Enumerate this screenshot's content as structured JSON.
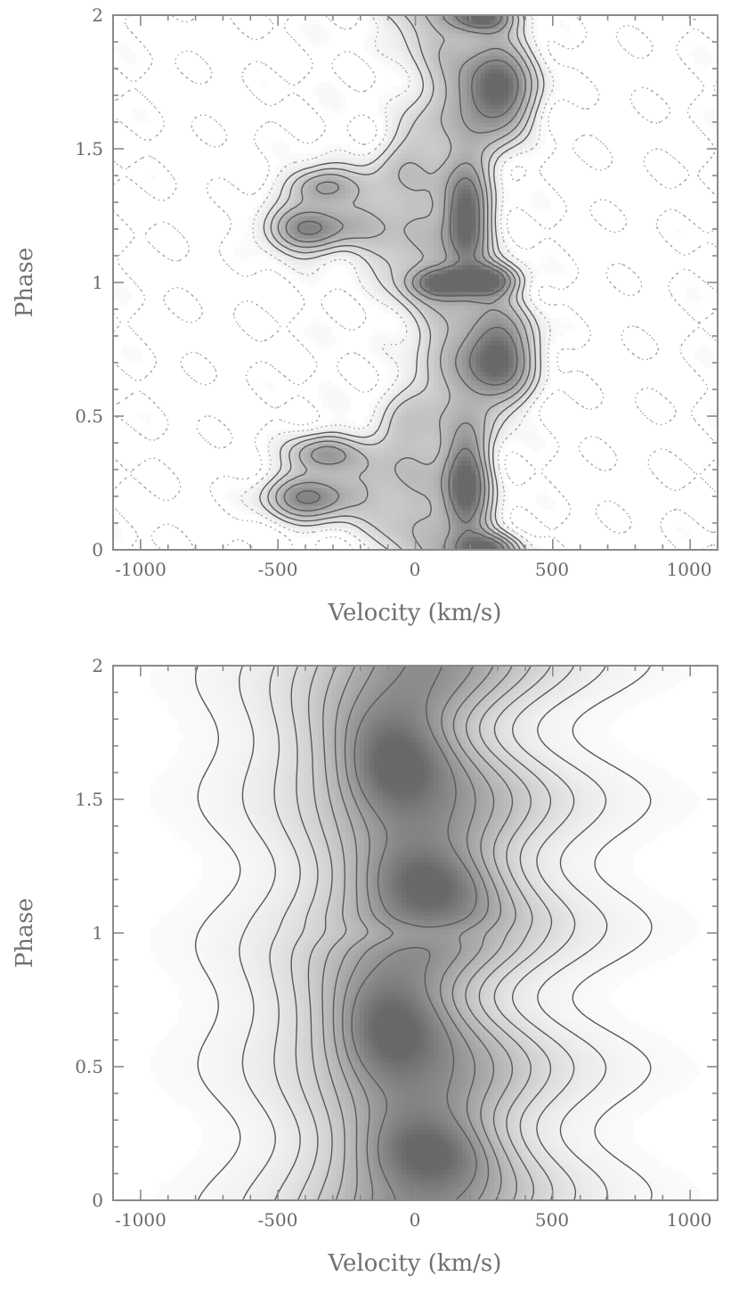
{
  "chart_data": [
    {
      "type": "heatmap",
      "panel": "top",
      "xlabel": "Velocity (km/s)",
      "ylabel": "Phase",
      "xlim": [
        -1100,
        1100
      ],
      "ylim": [
        0,
        2
      ],
      "xticks": [
        -1000,
        -500,
        0,
        500,
        1000
      ],
      "yticks": [
        0,
        0.5,
        1,
        1.5,
        2
      ],
      "xtick_labels": [
        "-1000",
        "-500",
        "0",
        "500",
        "1000"
      ],
      "ytick_labels": [
        "0",
        "0.5",
        "1",
        "1.5",
        "2"
      ],
      "colormap": "grayscale",
      "negative_contours": "dotted",
      "features": [
        {
          "v": -380,
          "phase": 0.2,
          "peak": 0.9,
          "dv": 110,
          "dphase": 0.06
        },
        {
          "v": -330,
          "phase": 0.36,
          "peak": 0.7,
          "dv": 90,
          "dphase": 0.05
        },
        {
          "v": 190,
          "phase": 0.24,
          "peak": 0.95,
          "dv": 55,
          "dphase": 0.12
        },
        {
          "v": 260,
          "phase": 0.0,
          "peak": 0.8,
          "dv": 80,
          "dphase": 0.04
        },
        {
          "v": 290,
          "phase": 0.72,
          "peak": 0.75,
          "dv": 80,
          "dphase": 0.1
        },
        {
          "v": 100,
          "phase": 1.0,
          "peak": 0.8,
          "dv": 70,
          "dphase": 0.035
        },
        {
          "v": 260,
          "phase": 1.01,
          "peak": 0.9,
          "dv": 80,
          "dphase": 0.04
        },
        {
          "v": -380,
          "phase": 1.2,
          "peak": 0.9,
          "dv": 110,
          "dphase": 0.06
        },
        {
          "v": -330,
          "phase": 1.36,
          "peak": 0.7,
          "dv": 90,
          "dphase": 0.05
        },
        {
          "v": 190,
          "phase": 1.24,
          "peak": 0.95,
          "dv": 55,
          "dphase": 0.12
        },
        {
          "v": 290,
          "phase": 1.72,
          "peak": 0.75,
          "dv": 80,
          "dphase": 0.1
        },
        {
          "v": 240,
          "phase": 2.0,
          "peak": 0.8,
          "dv": 80,
          "dphase": 0.04
        }
      ]
    },
    {
      "type": "heatmap",
      "panel": "bottom",
      "xlabel": "Velocity (km/s)",
      "ylabel": "Phase",
      "xlim": [
        -1100,
        1100
      ],
      "ylim": [
        0,
        2
      ],
      "xticks": [
        -1000,
        -500,
        0,
        500,
        1000
      ],
      "yticks": [
        0,
        0.5,
        1,
        1.5,
        2
      ],
      "xtick_labels": [
        "-1000",
        "-500",
        "0",
        "500",
        "1000"
      ],
      "ytick_labels": [
        "0",
        "0.5",
        "1",
        "1.5",
        "2"
      ],
      "colormap": "grayscale",
      "negative_contours": "none",
      "features": [
        {
          "v": -100,
          "phase": 0.62,
          "peak": 0.85,
          "dv": 120,
          "dphase": 0.12
        },
        {
          "v": 60,
          "phase": 0.18,
          "peak": 0.75,
          "dv": 150,
          "dphase": 0.09
        },
        {
          "v": -80,
          "phase": 1.62,
          "peak": 0.85,
          "dv": 120,
          "dphase": 0.12
        },
        {
          "v": 60,
          "phase": 1.18,
          "peak": 0.75,
          "dv": 150,
          "dphase": 0.09
        }
      ]
    }
  ]
}
